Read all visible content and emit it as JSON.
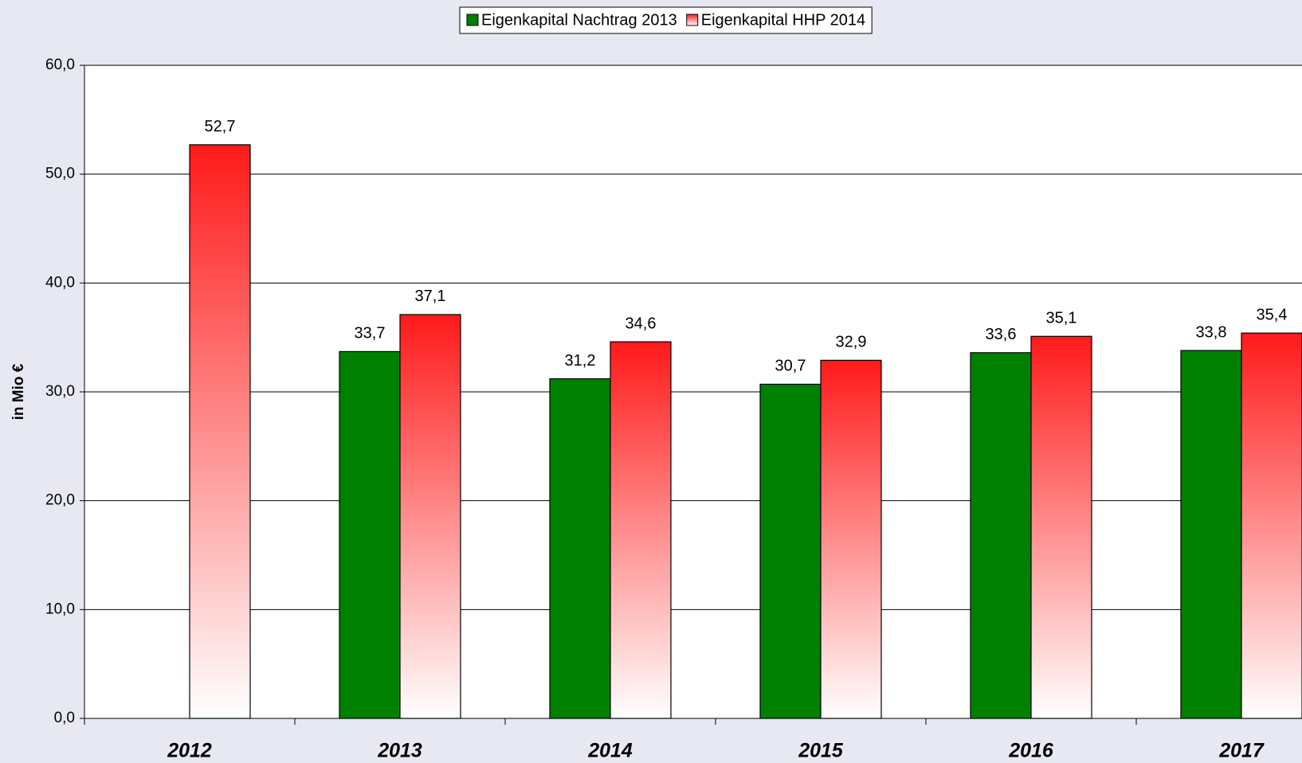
{
  "chart_data": {
    "type": "bar",
    "axis_label": "in Mio €",
    "categories": [
      "2012",
      "2013",
      "2014",
      "2015",
      "2016",
      "2017"
    ],
    "series": [
      {
        "name": "Eigenkapital Nachtrag 2013",
        "color": "#008000",
        "gradient": false,
        "values": [
          null,
          33.7,
          31.2,
          30.7,
          33.6,
          33.8
        ],
        "value_labels": [
          null,
          "33,7",
          "31,2",
          "30,7",
          "33,6",
          "33,8"
        ]
      },
      {
        "name": "Eigenkapital HHP 2014",
        "color": "#ff1a1a",
        "gradient": true,
        "values": [
          52.7,
          37.1,
          34.6,
          32.9,
          35.1,
          35.4
        ],
        "value_labels": [
          "52,7",
          "37,1",
          "34,6",
          "32,9",
          "35,1",
          "35,4"
        ]
      }
    ],
    "ylim": [
      0,
      60
    ],
    "yticks": [
      {
        "value": 0,
        "label": "0,0"
      },
      {
        "value": 10,
        "label": "10,0"
      },
      {
        "value": 20,
        "label": "20,0"
      },
      {
        "value": 30,
        "label": "30,0"
      },
      {
        "value": 40,
        "label": "40,0"
      },
      {
        "value": 50,
        "label": "50,0"
      },
      {
        "value": 60,
        "label": "60,0"
      }
    ],
    "grid": true,
    "legend": "top"
  }
}
